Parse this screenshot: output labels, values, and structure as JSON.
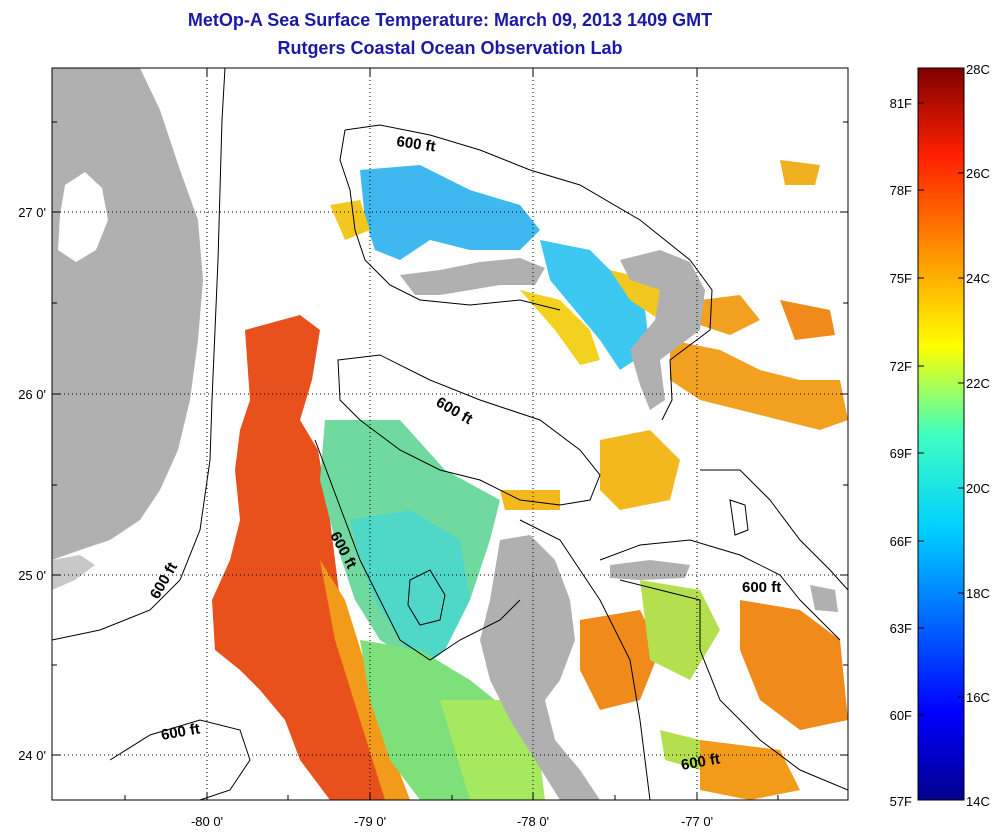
{
  "title": "MetOp-A Sea Surface Temperature:  March 09, 2013 1409 GMT",
  "subtitle": "Rutgers Coastal Ocean Observation Lab",
  "axes": {
    "x_ticks": [
      "-80 0'",
      "-79 0'",
      "-78 0'",
      "-77 0'"
    ],
    "y_ticks": [
      "27 0'",
      "26 0'",
      "25 0'",
      "24 0'"
    ]
  },
  "contour_labels": [
    "600 ft",
    "600 ft",
    "600 ft",
    "600 ft",
    "600 ft",
    "600 ft"
  ],
  "colorbar": {
    "fahrenheit": [
      "81F",
      "78F",
      "75F",
      "72F",
      "69F",
      "66F",
      "63F",
      "60F",
      "57F"
    ],
    "celsius": [
      "28C",
      "26C",
      "24C",
      "22C",
      "20C",
      "18C",
      "16C",
      "14C"
    ]
  },
  "colors": {
    "land": "#b0b0b0",
    "title": "#1a1aa6",
    "warm": "#e84a1a",
    "orange": "#f08a1a",
    "yellow": "#f2c81e",
    "green": "#a8e04a",
    "cyan": "#30d8e8",
    "blue": "#3aa0f0"
  }
}
